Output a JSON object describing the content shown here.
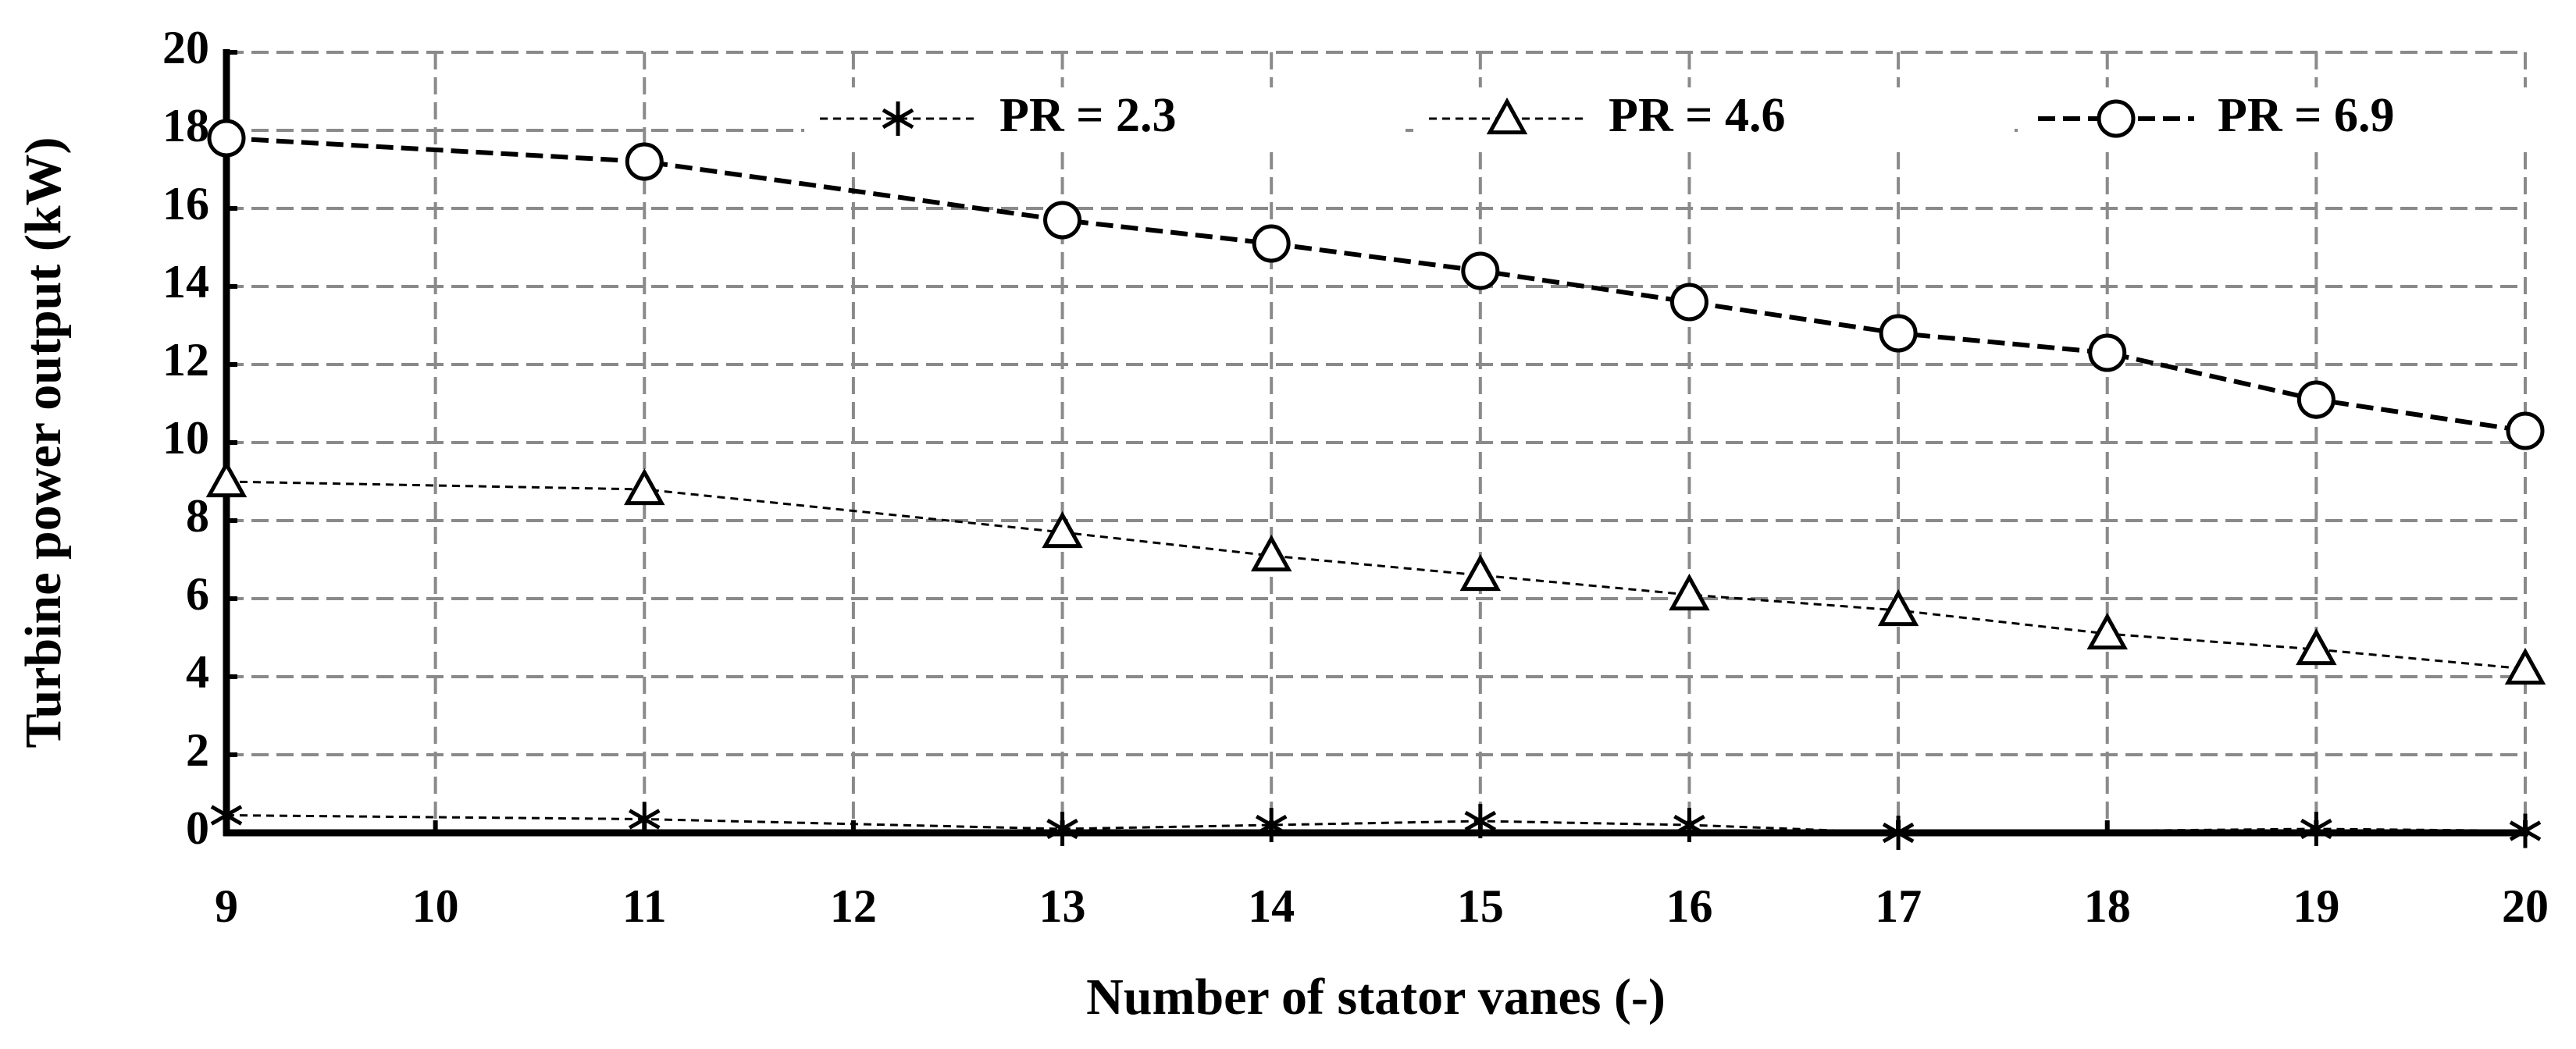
{
  "chart_data": {
    "type": "line",
    "xlabel": "Number of stator vanes (-)",
    "ylabel": "Turbine power output (kW)",
    "xlim": [
      9,
      20
    ],
    "xticks": [
      9,
      10,
      11,
      12,
      13,
      14,
      15,
      16,
      17,
      18,
      19,
      20
    ],
    "ylim": [
      0,
      20
    ],
    "yticks": [
      0,
      2,
      4,
      6,
      8,
      10,
      12,
      14,
      16,
      18,
      20
    ],
    "grid": true,
    "legend": "top",
    "series": [
      {
        "name": "PR = 2.3",
        "color": "#000000",
        "marker": "star",
        "line_style": "dotted",
        "x": [
          9,
          11,
          13,
          14,
          15,
          16,
          17,
          19,
          20
        ],
        "values": [
          0.45,
          0.35,
          0.1,
          0.2,
          0.3,
          0.2,
          0.0,
          0.1,
          0.05
        ]
      },
      {
        "name": "PR = 4.6",
        "color": "#000000",
        "marker": "triangle",
        "line_style": "dotted",
        "x": [
          9,
          11,
          13,
          14,
          15,
          16,
          17,
          18,
          19,
          20
        ],
        "values": [
          9.0,
          8.8,
          7.7,
          7.1,
          6.6,
          6.1,
          5.7,
          5.1,
          4.7,
          4.2
        ]
      },
      {
        "name": "PR = 6.9",
        "color": "#000000",
        "marker": "circle",
        "line_style": "dashed",
        "x": [
          9,
          11,
          13,
          14,
          15,
          16,
          17,
          18,
          19,
          20
        ],
        "values": [
          17.8,
          17.2,
          15.7,
          15.1,
          14.4,
          13.6,
          12.8,
          12.3,
          11.1,
          10.3
        ]
      }
    ]
  }
}
